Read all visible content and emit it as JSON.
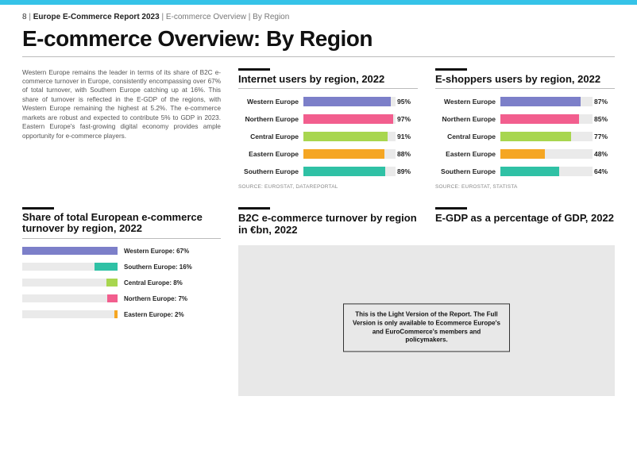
{
  "meta": {
    "page_number": "8",
    "report_name": "Europe E-Commerce Report 2023",
    "crumb1": "E-commerce Overview",
    "crumb2": "By Region"
  },
  "title": "E-commerce Overview: By Region",
  "intro_text": "Western Europe remains the leader in terms of its share of B2C e-commerce turnover in Europe, consistently encompassing over 67% of total turnover, with Southern Europe catching up at 16%. This share of turnover is reflected in the E-GDP of the regions, with Western Europe remaining the highest at 5.2%. The e-commerce markets are robust and expected to contribute 5% to GDP in 2023. Eastern Europe's fast-growing digital economy provides ample opportunity for e-commerce players.",
  "colors": {
    "topbar": "#35c3e8",
    "track": "#eaeaea",
    "greybox": "#e8e8e8",
    "regions": {
      "western": "#7c7fc9",
      "northern": "#f25e8e",
      "central": "#a8d64f",
      "eastern": "#f5a623",
      "southern": "#2fc1a5"
    }
  },
  "chart_internet": {
    "title": "Internet users by region, 2022",
    "type": "bar",
    "max": 100,
    "rows": [
      {
        "label": "Western Europe",
        "val": 95,
        "color": "#7c7fc9"
      },
      {
        "label": "Northern Europe",
        "val": 97,
        "color": "#f25e8e"
      },
      {
        "label": "Central Europe",
        "val": 91,
        "color": "#a8d64f"
      },
      {
        "label": "Eastern Europe",
        "val": 88,
        "color": "#f5a623"
      },
      {
        "label": "Southern Europe",
        "val": 89,
        "color": "#2fc1a5"
      }
    ],
    "source": "SOURCE: EUROSTAT, DATAREPORTAL"
  },
  "chart_eshoppers": {
    "title": "E-shoppers users by region, 2022",
    "type": "bar",
    "max": 100,
    "rows": [
      {
        "label": "Western Europe",
        "val": 87,
        "color": "#7c7fc9"
      },
      {
        "label": "Northern Europe",
        "val": 85,
        "color": "#f25e8e"
      },
      {
        "label": "Central Europe",
        "val": 77,
        "color": "#a8d64f"
      },
      {
        "label": "Eastern Europe",
        "val": 48,
        "color": "#f5a623"
      },
      {
        "label": "Southern Europe",
        "val": 64,
        "color": "#2fc1a5"
      }
    ],
    "source": "SOURCE: EUROSTAT, STATISTA"
  },
  "chart_share": {
    "title": "Share of total European e-commerce turnover by region, 2022",
    "type": "bar",
    "max": 67,
    "rows": [
      {
        "label": "Western Europe: 67%",
        "val": 67,
        "color": "#7c7fc9",
        "align": "left"
      },
      {
        "label": "Southern Europe: 16%",
        "val": 16,
        "color": "#2fc1a5",
        "align": "right"
      },
      {
        "label": "Central Europe: 8%",
        "val": 8,
        "color": "#a8d64f",
        "align": "right"
      },
      {
        "label": "Northern Europe: 7%",
        "val": 7,
        "color": "#f25e8e",
        "align": "right"
      },
      {
        "label": "Eastern Europe: 2%",
        "val": 2,
        "color": "#f5a623",
        "align": "right"
      }
    ]
  },
  "grey_panel": {
    "title_left": "B2C e-commerce turnover by region in €bn, 2022",
    "title_right": "E-GDP as a percentage of GDP, 2022",
    "notice": "This is the Light Version of the Report. The Full Version is only available to Ecommerce Europe's and EuroCommerce's members and policymakers."
  }
}
